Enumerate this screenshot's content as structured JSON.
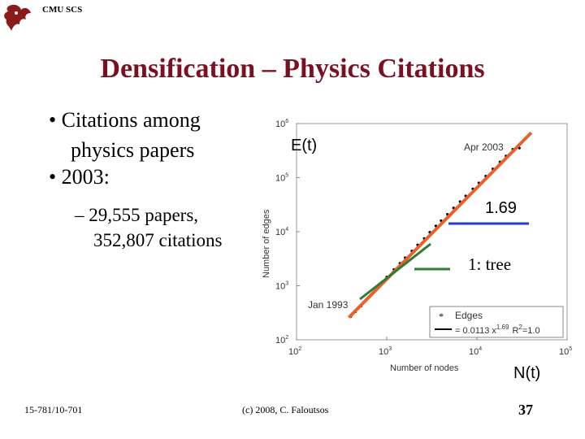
{
  "header": {
    "brand": "CMU SCS"
  },
  "title": "Densification – Physics Citations",
  "bullets": [
    {
      "line1": "• Citations among",
      "line2": "physics papers"
    },
    {
      "line1": "• 2003:"
    }
  ],
  "sub_bullet": {
    "line1": "– 29,555 papers,",
    "line2": "352,807 citations"
  },
  "chart_data": {
    "type": "scatter",
    "xscale": "log",
    "yscale": "log",
    "xlim": [
      100,
      100000
    ],
    "ylim": [
      100,
      1000000
    ],
    "xlabel": "Number of nodes",
    "ylabel": "Number of edges",
    "x_ticks": [
      {
        "base": "10",
        "exp": "2"
      },
      {
        "base": "10",
        "exp": "3"
      },
      {
        "base": "10",
        "exp": "4"
      },
      {
        "base": "10",
        "exp": "5"
      }
    ],
    "y_ticks": [
      {
        "base": "10",
        "exp": "2"
      },
      {
        "base": "10",
        "exp": "3"
      },
      {
        "base": "10",
        "exp": "4"
      },
      {
        "base": "10",
        "exp": "5"
      },
      {
        "base": "10",
        "exp": "6"
      }
    ],
    "annotations": [
      "Jan 1993",
      "Apr 2003"
    ],
    "legend": {
      "placement": "bottom-right",
      "points_label": "Edges",
      "fit_label_prefix": "= 0.0113 x",
      "fit_exponent": "1.69",
      "r2_label": "R",
      "r2_exp": "2",
      "r2_value": "=1.0"
    },
    "fit": {
      "coef": 0.0113,
      "exponent": 1.69
    },
    "x_range_points": [
      400,
      29555
    ],
    "points": [
      [
        400,
        270
      ],
      [
        450,
        330
      ],
      [
        520,
        420
      ],
      [
        600,
        560
      ],
      [
        700,
        730
      ],
      [
        800,
        960
      ],
      [
        900,
        1200
      ],
      [
        1000,
        1450
      ],
      [
        1200,
        2000
      ],
      [
        1400,
        2600
      ],
      [
        1600,
        3300
      ],
      [
        1900,
        4400
      ],
      [
        2200,
        5700
      ],
      [
        2600,
        7500
      ],
      [
        3000,
        9800
      ],
      [
        3500,
        12800
      ],
      [
        4000,
        16000
      ],
      [
        4700,
        21000
      ],
      [
        5500,
        27500
      ],
      [
        6500,
        36000
      ],
      [
        7500,
        46000
      ],
      [
        9000,
        62000
      ],
      [
        10500,
        80000
      ],
      [
        12500,
        107000
      ],
      [
        15000,
        145000
      ],
      [
        18000,
        195000
      ],
      [
        21000,
        252000
      ],
      [
        25000,
        335000
      ],
      [
        29555,
        352807
      ]
    ],
    "line_colors": {
      "fit": "#e8602c",
      "slope": "#1f3ec9",
      "tree": "#2e7d32",
      "points": "#000000"
    },
    "side_labels": {
      "y_series": "E(t)",
      "x_series": "N(t)",
      "slope_label": "1.69",
      "tree_label": "1: tree"
    }
  },
  "footer": {
    "course": "15-781/10-701",
    "copyright": "(c) 2008, C. Faloutsos",
    "page": "37"
  }
}
